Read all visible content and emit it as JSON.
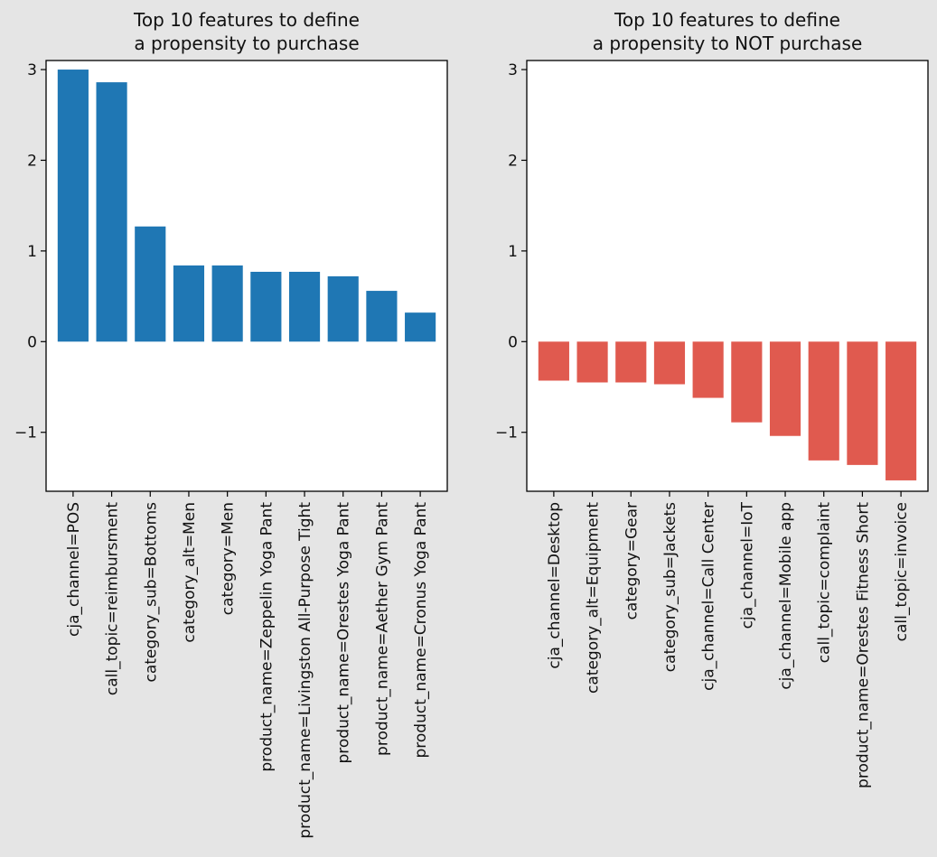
{
  "chart_data": [
    {
      "type": "bar",
      "title": "Top 10 features to define\na propensity to purchase",
      "color": "#1f77b4",
      "categories": [
        "cja_channel=POS",
        "call_topic=reimbursment",
        "category_sub=Bottoms",
        "category_alt=Men",
        "category=Men",
        "product_name=Zeppelin Yoga Pant",
        "product_name=Livingston All-Purpose Tight",
        "product_name=Orestes Yoga Pant",
        "product_name=Aether Gym Pant",
        "product_name=Cronus Yoga Pant"
      ],
      "values": [
        3.0,
        2.86,
        1.27,
        0.84,
        0.84,
        0.77,
        0.77,
        0.72,
        0.56,
        0.32
      ],
      "ylim": [
        -1.65,
        3.1
      ],
      "yticks": [
        -1,
        0,
        1,
        2,
        3
      ],
      "ytick_labels": [
        "−1",
        "0",
        "1",
        "2",
        "3"
      ],
      "grid": false
    },
    {
      "type": "bar",
      "title": "Top 10 features to define\na propensity to NOT purchase",
      "color": "#e05a4f",
      "categories": [
        "cja_channel=Desktop",
        "category_alt=Equipment",
        "category=Gear",
        "category_sub=Jackets",
        "cja_channel=Call Center",
        "cja_channel=IoT",
        "cja_channel=Mobile app",
        "call_topic=complaint",
        "product_name=Orestes Fitness Short",
        "call_topic=invoice"
      ],
      "values": [
        -0.43,
        -0.45,
        -0.45,
        -0.47,
        -0.62,
        -0.89,
        -1.04,
        -1.31,
        -1.36,
        -1.53
      ],
      "ylim": [
        -1.65,
        3.1
      ],
      "yticks": [
        -1,
        0,
        1,
        2,
        3
      ],
      "ytick_labels": [
        "−1",
        "0",
        "1",
        "2",
        "3"
      ],
      "grid": false
    }
  ]
}
